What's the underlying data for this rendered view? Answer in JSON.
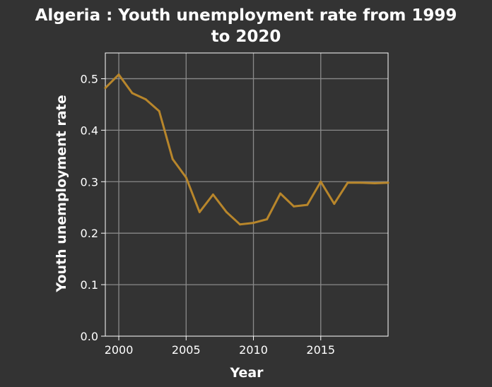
{
  "chart_data": {
    "type": "line",
    "title_lines": [
      "Algeria : Youth unemployment rate from 1999",
      "to 2020"
    ],
    "xlabel": "Year",
    "ylabel": "Youth unemployment rate",
    "xlim": [
      1999,
      2020
    ],
    "ylim": [
      0,
      0.55
    ],
    "x_ticks": [
      2000,
      2005,
      2010,
      2015
    ],
    "x_tick_labels": [
      "2000",
      "2005",
      "2010",
      "2015"
    ],
    "y_ticks": [
      0.0,
      0.1,
      0.2,
      0.3,
      0.4,
      0.5
    ],
    "y_tick_labels": [
      "0.0",
      "0.1",
      "0.2",
      "0.3",
      "0.4",
      "0.5"
    ],
    "grid": true,
    "colors": {
      "background": "#333333",
      "line": "#b8862b",
      "grid": "#8a8a8a",
      "axes": "#ffffff",
      "text": "#ffffff"
    },
    "series": [
      {
        "x": [
          1999,
          2000,
          2001,
          2002,
          2003,
          2004,
          2005,
          2006,
          2007,
          2008,
          2009,
          2010,
          2011,
          2012,
          2013,
          2014,
          2015,
          2016,
          2017,
          2018,
          2019,
          2020
        ],
        "values": [
          0.482,
          0.508,
          0.472,
          0.46,
          0.437,
          0.344,
          0.308,
          0.241,
          0.275,
          0.241,
          0.217,
          0.22,
          0.227,
          0.277,
          0.252,
          0.255,
          0.3,
          0.257,
          0.298,
          0.298,
          0.297,
          0.298
        ]
      }
    ]
  }
}
